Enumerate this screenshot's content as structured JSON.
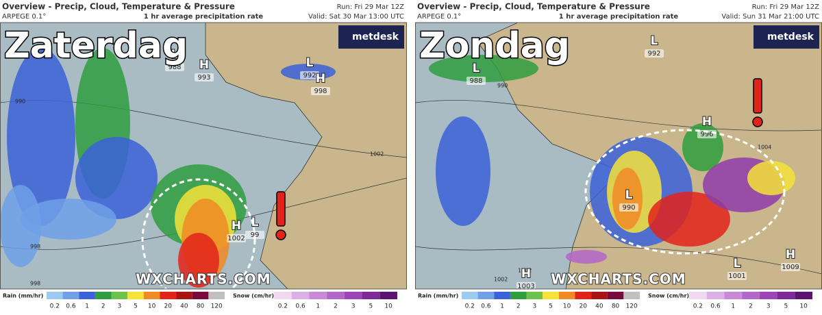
{
  "panels": [
    {
      "header": {
        "title": "Overview - Precip, Cloud, Temperature & Pressure",
        "model": "ARPEGE 0.1°",
        "subtitle": "1 hr average precipitation rate",
        "run": "Run: Fri 29 Mar 12Z",
        "valid": "Valid: Sat 30 Mar 13:00 UTC"
      },
      "day_label": "Zaterdag",
      "pressure_centers": [
        {
          "letter": "L",
          "value": "988"
        },
        {
          "letter": "H",
          "value": "993"
        },
        {
          "letter": "L",
          "value": "992"
        },
        {
          "letter": "H",
          "value": "998"
        },
        {
          "letter": "H",
          "value": "1002"
        },
        {
          "letter": "L",
          "value": "99"
        }
      ],
      "isobar_labels": [
        "990",
        "998",
        "998",
        "1002"
      ]
    },
    {
      "header": {
        "title": "Overview - Precip, Cloud, Temperature & Pressure",
        "model": "ARPEGE 0.1°",
        "subtitle": "1 hr average precipitation rate",
        "run": "Run: Fri 29 Mar 12Z",
        "valid": "Valid: Sun 31 Mar 21:00 UTC"
      },
      "day_label": "Zondag",
      "pressure_centers": [
        {
          "letter": "L",
          "value": "992"
        },
        {
          "letter": "L",
          "value": "988"
        },
        {
          "letter": "H",
          "value": "996"
        },
        {
          "letter": "L",
          "value": "990"
        },
        {
          "letter": "H",
          "value": "1003"
        },
        {
          "letter": "L",
          "value": "1001"
        },
        {
          "letter": "H",
          "value": "1009"
        }
      ],
      "isobar_labels": [
        "990",
        "1002",
        "1004",
        "1002"
      ]
    }
  ],
  "brand": "metdesk",
  "watermark": "WXCHARTS.COM",
  "legend": {
    "rain_title": "Rain (mm/hr)",
    "rain_ticks": [
      "0.2",
      "0.6",
      "1",
      "2",
      "3",
      "5",
      "10",
      "20",
      "40",
      "80",
      "120"
    ],
    "snow_title": "Snow (cm/hr)",
    "snow_ticks": [
      "0.2",
      "0.6",
      "1",
      "2",
      "3",
      "5",
      "10"
    ]
  }
}
